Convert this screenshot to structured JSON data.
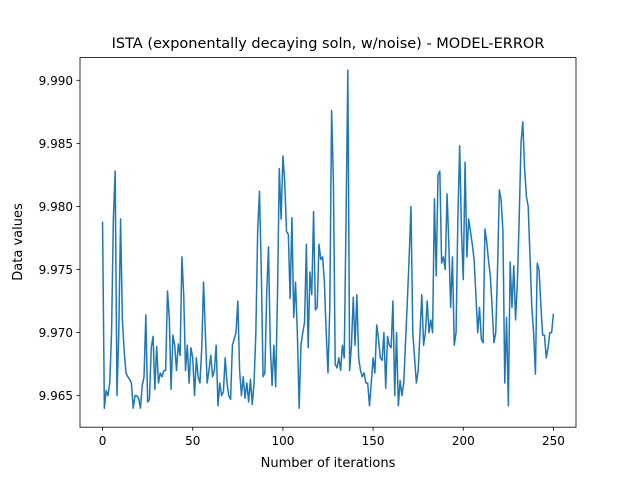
{
  "chart_data": {
    "type": "line",
    "title": "ISTA (exponentally decaying soln, w/noise) - MODEL-ERROR",
    "xlabel": "Number of iterations",
    "ylabel": "Data values",
    "color": "#1f77b4",
    "x": [
      0,
      1,
      2,
      3,
      4,
      5,
      6,
      7,
      8,
      9,
      10,
      11,
      12,
      13,
      14,
      15,
      16,
      17,
      18,
      19,
      20,
      21,
      22,
      23,
      24,
      25,
      26,
      27,
      28,
      29,
      30,
      31,
      32,
      33,
      34,
      35,
      36,
      37,
      38,
      39,
      40,
      41,
      42,
      43,
      44,
      45,
      46,
      47,
      48,
      49,
      50,
      51,
      52,
      53,
      54,
      55,
      56,
      57,
      58,
      59,
      60,
      61,
      62,
      63,
      64,
      65,
      66,
      67,
      68,
      69,
      70,
      71,
      72,
      73,
      74,
      75,
      76,
      77,
      78,
      79,
      80,
      81,
      82,
      83,
      84,
      85,
      86,
      87,
      88,
      89,
      90,
      91,
      92,
      93,
      94,
      95,
      96,
      97,
      98,
      99,
      100,
      101,
      102,
      103,
      104,
      105,
      106,
      107,
      108,
      109,
      110,
      111,
      112,
      113,
      114,
      115,
      116,
      117,
      118,
      119,
      120,
      121,
      122,
      123,
      124,
      125,
      126,
      127,
      128,
      129,
      130,
      131,
      132,
      133,
      134,
      135,
      136,
      137,
      138,
      139,
      140,
      141,
      142,
      143,
      144,
      145,
      146,
      147,
      148,
      149,
      150,
      151,
      152,
      153,
      154,
      155,
      156,
      157,
      158,
      159,
      160,
      161,
      162,
      163,
      164,
      165,
      166,
      167,
      168,
      169,
      170,
      171,
      172,
      173,
      174,
      175,
      176,
      177,
      178,
      179,
      180,
      181,
      182,
      183,
      184,
      185,
      186,
      187,
      188,
      189,
      190,
      191,
      192,
      193,
      194,
      195,
      196,
      197,
      198,
      199,
      200,
      201,
      202,
      203,
      204,
      205,
      206,
      207,
      208,
      209,
      210,
      211,
      212,
      213,
      214,
      215,
      216,
      217,
      218,
      219,
      220,
      221,
      222,
      223,
      224,
      225,
      226,
      227,
      228,
      229,
      230,
      231,
      232,
      233,
      234,
      235,
      236,
      237,
      238,
      239,
      240,
      241,
      242,
      243,
      244,
      245,
      246,
      247,
      248,
      249,
      250
    ],
    "values": [
      9.9788,
      9.964,
      9.9654,
      9.965,
      9.966,
      9.97,
      9.979,
      9.9828,
      9.965,
      9.97,
      9.979,
      9.971,
      9.9685,
      9.9668,
      9.9665,
      9.9663,
      9.966,
      9.964,
      9.965,
      9.965,
      9.9648,
      9.964,
      9.9658,
      9.9665,
      9.9714,
      9.9645,
      9.9647,
      9.9688,
      9.9697,
      9.9655,
      9.9689,
      9.966,
      9.9668,
      9.9665,
      9.967,
      9.967,
      9.9733,
      9.9712,
      9.9655,
      9.9698,
      9.969,
      9.967,
      9.9691,
      9.9682,
      9.976,
      9.973,
      9.967,
      9.969,
      9.966,
      9.9688,
      9.968,
      9.965,
      9.968,
      9.9665,
      9.966,
      9.9688,
      9.974,
      9.97,
      9.966,
      9.967,
      9.9682,
      9.9665,
      9.967,
      9.969,
      9.9642,
      9.966,
      9.965,
      9.9653,
      9.968,
      9.966,
      9.965,
      9.9647,
      9.969,
      9.9695,
      9.97,
      9.9725,
      9.967,
      9.965,
      9.9665,
      9.9648,
      9.966,
      9.9645,
      9.9663,
      9.9643,
      9.966,
      9.97,
      9.978,
      9.9812,
      9.975,
      9.9665,
      9.9668,
      9.973,
      9.9768,
      9.969,
      9.9658,
      9.969,
      9.9657,
      9.973,
      9.983,
      9.979,
      9.984,
      9.982,
      9.978,
      9.9778,
      9.9727,
      9.9791,
      9.9712,
      9.974,
      9.97,
      9.964,
      9.969,
      9.97,
      9.9708,
      9.977,
      9.9688,
      9.9748,
      9.973,
      9.9796,
      9.9718,
      9.972,
      9.977,
      9.9758,
      9.976,
      9.974,
      9.97,
      9.9668,
      9.972,
      9.9876,
      9.982,
      9.9675,
      9.9672,
      9.968,
      9.967,
      9.969,
      9.968,
      9.979,
      9.9908,
      9.967,
      9.969,
      9.9728,
      9.969,
      9.973,
      9.968,
      9.967,
      9.9665,
      9.9668,
      9.966,
      9.966,
      9.9642,
      9.966,
      9.968,
      9.9668,
      9.9706,
      9.9695,
      9.968,
      9.9678,
      9.97,
      9.9656,
      9.9697,
      9.969,
      9.9688,
      9.9725,
      9.965,
      9.97,
      9.9642,
      9.9662,
      9.965,
      9.966,
      9.9693,
      9.9725,
      9.976,
      9.98,
      9.97,
      9.968,
      9.966,
      9.967,
      9.97,
      9.973,
      9.969,
      9.97,
      9.9725,
      9.97,
      9.971,
      9.97,
      9.9806,
      9.9745,
      9.9825,
      9.9828,
      9.9755,
      9.976,
      9.975,
      9.981,
      9.977,
      9.972,
      9.976,
      9.969,
      9.97,
      9.979,
      9.9848,
      9.978,
      9.9742,
      9.9835,
      9.976,
      9.979,
      9.978,
      9.977,
      9.9758,
      9.973,
      9.97,
      9.972,
      9.9695,
      9.9692,
      9.9782,
      9.9772,
      9.9757,
      9.9745,
      9.972,
      9.9692,
      9.97,
      9.975,
      9.9813,
      9.9805,
      9.978,
      9.966,
      9.9712,
      9.9642,
      9.9756,
      9.972,
      9.9753,
      9.971,
      9.974,
      9.979,
      9.985,
      9.9867,
      9.983,
      9.9808,
      9.98,
      9.976,
      9.972,
      9.97,
      9.9667,
      9.9755,
      9.975,
      9.9722,
      9.9698,
      9.9698,
      9.968,
      9.9688,
      9.97,
      9.97,
      9.9715
    ],
    "xlim": [
      -12.5,
      262.5
    ],
    "ylim": [
      9.9625,
      9.9918
    ],
    "xticks": [
      0,
      50,
      100,
      150,
      200,
      250
    ],
    "yticks": [
      9.965,
      {
        "value": 9.97,
        "label": "9.970"
      },
      9.975,
      {
        "value": 9.98,
        "label": "9.980"
      },
      9.985,
      {
        "value": 9.99,
        "label": "9.990"
      }
    ]
  }
}
